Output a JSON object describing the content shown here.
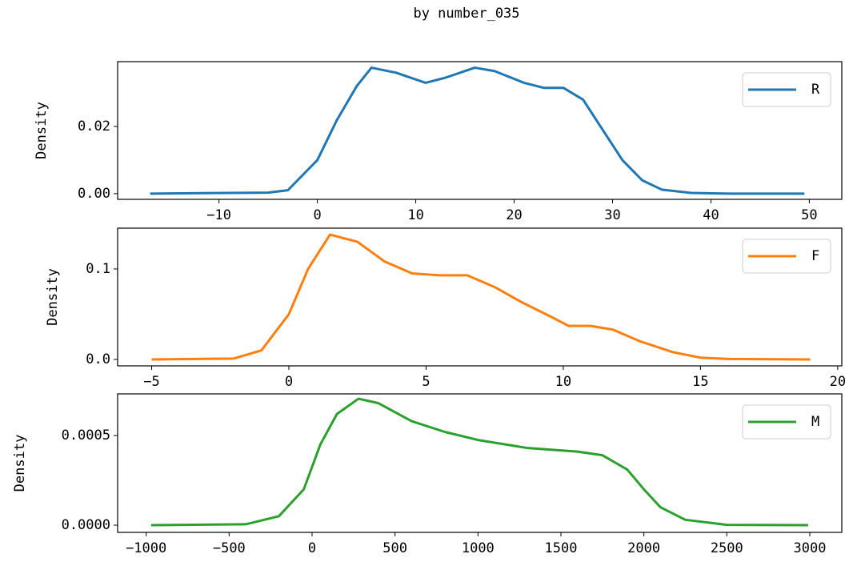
{
  "title": "by number_035",
  "chart_data": [
    {
      "type": "line",
      "ylabel": "Density",
      "x": [
        -17,
        -5,
        -3,
        0,
        2,
        4,
        5.5,
        8,
        11,
        13,
        16,
        18,
        21,
        23,
        25,
        27,
        29,
        31,
        33,
        35,
        38,
        42,
        49.5
      ],
      "series": [
        {
          "name": "R",
          "color": "#1f77b4",
          "values": [
            0,
            0.0003,
            0.001,
            0.01,
            0.022,
            0.032,
            0.0375,
            0.036,
            0.033,
            0.0345,
            0.0375,
            0.0365,
            0.033,
            0.0315,
            0.0315,
            0.028,
            0.019,
            0.01,
            0.004,
            0.0012,
            0.0002,
            0,
            0
          ]
        }
      ],
      "xlim": [
        -20.3,
        53.3
      ],
      "xticks": [
        {
          "value": -10,
          "label": "−10"
        },
        0,
        10,
        20,
        30,
        40,
        50
      ],
      "ylim": [
        -0.0017,
        0.0393
      ],
      "yticks": [
        {
          "value": 0,
          "label": "0.00"
        },
        {
          "value": 0.02,
          "label": "0.02"
        }
      ],
      "legend": "upper right"
    },
    {
      "type": "line",
      "ylabel": "Density",
      "x": [
        -5,
        -2,
        -1,
        0,
        0.7,
        1.5,
        2.5,
        3.5,
        4.5,
        5.5,
        6.5,
        7.5,
        8.5,
        9.5,
        10.2,
        11,
        11.8,
        12.8,
        14,
        15,
        16,
        19
      ],
      "series": [
        {
          "name": "F",
          "color": "#ff7f0e",
          "values": [
            0,
            0.001,
            0.01,
            0.05,
            0.1,
            0.138,
            0.13,
            0.108,
            0.095,
            0.093,
            0.093,
            0.08,
            0.063,
            0.048,
            0.037,
            0.037,
            0.033,
            0.02,
            0.008,
            0.002,
            0.0005,
            0
          ]
        }
      ],
      "xlim": [
        -6.24,
        20.15
      ],
      "xticks": [
        {
          "value": -5,
          "label": "−5"
        },
        0,
        5,
        10,
        15,
        20
      ],
      "ylim": [
        -0.0071,
        0.1451
      ],
      "yticks": [
        {
          "value": 0,
          "label": "0.0"
        },
        0.1
      ],
      "legend": "upper right"
    },
    {
      "type": "line",
      "ylabel": "Density",
      "x": [
        -970,
        -400,
        -200,
        -50,
        50,
        150,
        280,
        400,
        600,
        800,
        1000,
        1300,
        1600,
        1750,
        1900,
        2000,
        2100,
        2250,
        2500,
        2990
      ],
      "series": [
        {
          "name": "M",
          "color": "#2ca02c",
          "values": [
            0,
            5e-06,
            5e-05,
            0.0002,
            0.00045,
            0.00062,
            0.000705,
            0.00068,
            0.00058,
            0.00052,
            0.000475,
            0.00043,
            0.00041,
            0.00039,
            0.00031,
            0.0002,
            0.0001,
            3e-05,
            2e-06,
            0
          ]
        }
      ],
      "xlim": [
        -1172,
        3193
      ],
      "xticks": [
        {
          "value": -1000,
          "label": "−1000"
        },
        {
          "value": -500,
          "label": "−500"
        },
        0,
        500,
        1000,
        1500,
        2000,
        2500,
        3000
      ],
      "ylim": [
        -4e-05,
        0.000732
      ],
      "yticks": [
        {
          "value": 0,
          "label": "0.0000"
        },
        0.0005
      ],
      "legend": "upper right"
    }
  ]
}
